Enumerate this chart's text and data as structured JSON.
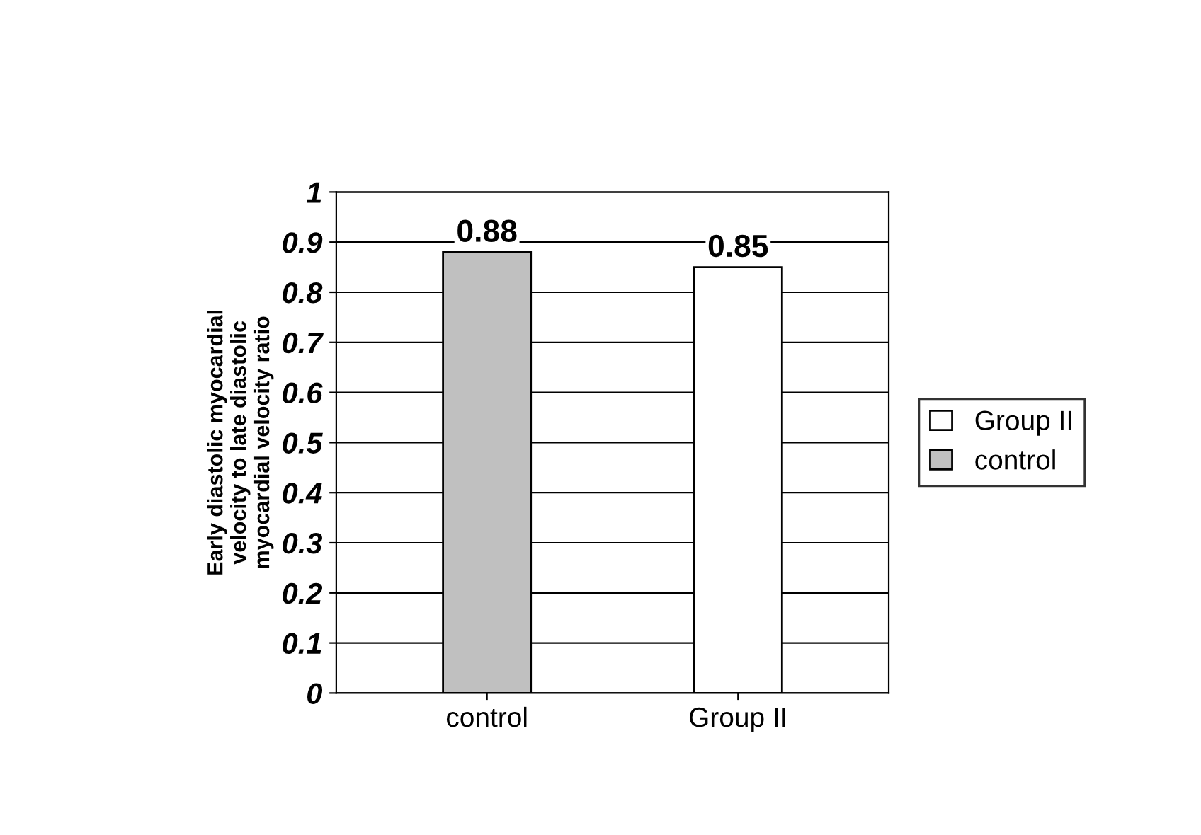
{
  "chart_data": {
    "type": "bar",
    "ylabel": "Early diastolic myocardial\nvelocity to late diastolic\nmyocardial velocity ratio",
    "categories": [
      "control",
      "Group II"
    ],
    "series": [
      {
        "name": "Group II",
        "color": "#ffffff",
        "values": [
          null,
          0.85
        ]
      },
      {
        "name": "control",
        "color": "#c0c0c0",
        "values": [
          0.88,
          null
        ]
      }
    ],
    "ylim": [
      0,
      1
    ],
    "yticks": [
      0,
      0.1,
      0.2,
      0.3,
      0.4,
      0.5,
      0.6,
      0.7,
      0.8,
      0.9,
      1
    ],
    "grid": "y",
    "legend": "right",
    "data_labels": true
  }
}
